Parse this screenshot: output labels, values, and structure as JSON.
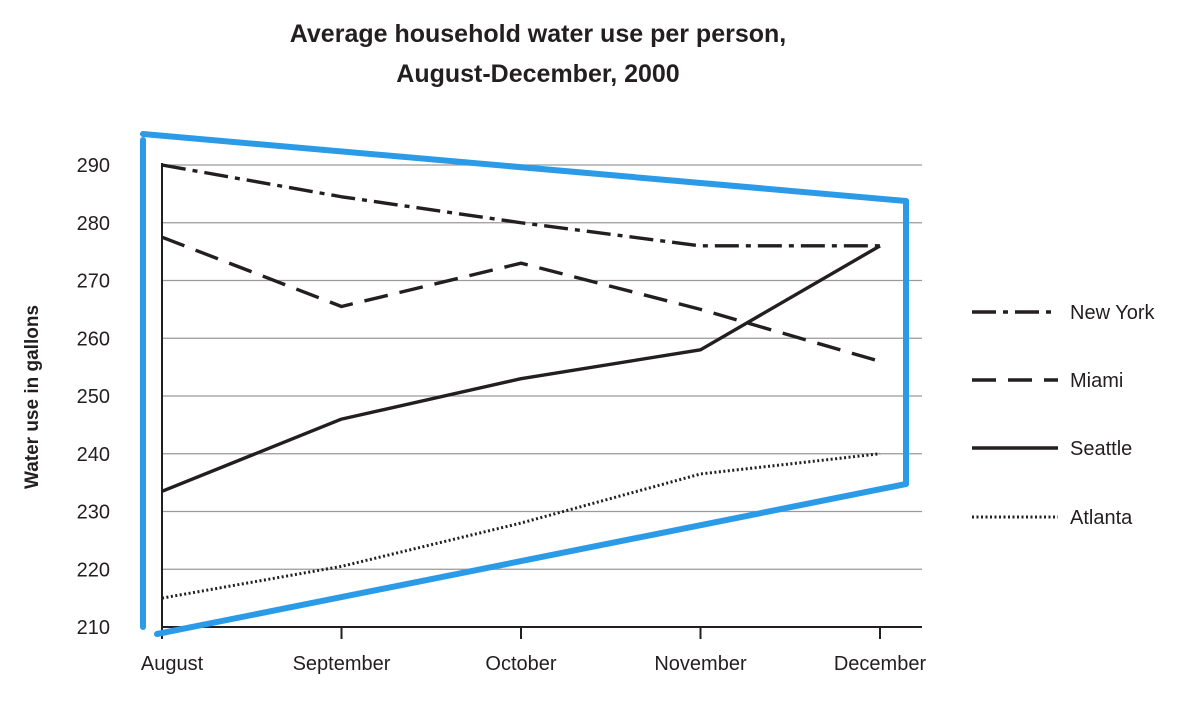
{
  "chart_data": {
    "type": "line",
    "title": "Average household water use per person,",
    "subtitle": "August-December, 2000",
    "ylabel": "Water use in gallons",
    "xlabel": "",
    "categories": [
      "August",
      "September",
      "October",
      "November",
      "December"
    ],
    "ylim": [
      210,
      290
    ],
    "yticks": [
      210,
      220,
      230,
      240,
      250,
      260,
      270,
      280,
      290
    ],
    "grid": true,
    "legend_position": "right",
    "series": [
      {
        "name": "New York",
        "style": "dash-dot",
        "color": "#231f20",
        "values": [
          290,
          284.5,
          280,
          276,
          276
        ]
      },
      {
        "name": "Miami",
        "style": "dashed",
        "color": "#231f20",
        "values": [
          277.5,
          265.5,
          273,
          265,
          256
        ]
      },
      {
        "name": "Seattle",
        "style": "solid",
        "color": "#231f20",
        "values": [
          233.5,
          246,
          253,
          258,
          276
        ]
      },
      {
        "name": "Atlanta",
        "style": "dotted",
        "color": "#231f20",
        "values": [
          215,
          220.5,
          228,
          236.5,
          240
        ]
      }
    ]
  },
  "annotation": {
    "shape": "trapezoid-outline",
    "color": "#2b9be8"
  }
}
